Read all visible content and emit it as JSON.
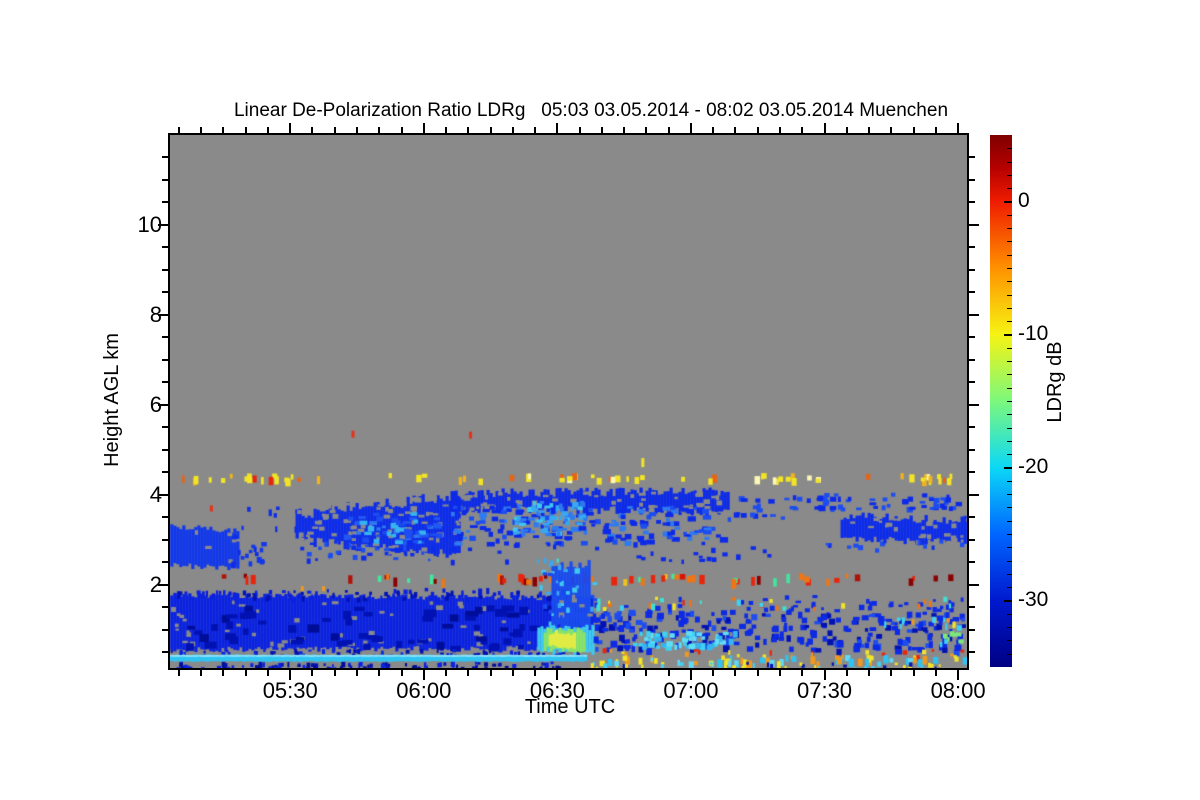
{
  "title": "Linear De-Polarization Ratio LDRg   05:03 03.05.2014 - 08:02 03.05.2014 Muenchen",
  "colors": {
    "background": "#ffffff",
    "no_data": "#8a8a8a",
    "axis": "#000000"
  },
  "axes": {
    "x": {
      "label": "Time UTC",
      "start_utc": "05:03",
      "end_utc": "08:02",
      "major": [
        {
          "t": 5.5,
          "label": "05:30"
        },
        {
          "t": 6.0,
          "label": "06:00"
        },
        {
          "t": 6.5,
          "label": "06:30"
        },
        {
          "t": 7.0,
          "label": "07:00"
        },
        {
          "t": 7.5,
          "label": "07:30"
        },
        {
          "t": 8.0,
          "label": "08:00"
        }
      ],
      "minor_step_minutes": 5
    },
    "y": {
      "label": "Height AGL km",
      "major": [
        {
          "h": 2,
          "label": "2"
        },
        {
          "h": 4,
          "label": "4"
        },
        {
          "h": 6,
          "label": "6"
        },
        {
          "h": 8,
          "label": "8"
        },
        {
          "h": 10,
          "label": "10"
        }
      ],
      "minor_step_km": 0.5
    }
  },
  "colorbar": {
    "label": "LDRg dB",
    "v_min": -35,
    "v_max": 5,
    "major": [
      {
        "v": 0,
        "label": "0"
      },
      {
        "v": -10,
        "label": "-10"
      },
      {
        "v": -20,
        "label": "-20"
      },
      {
        "v": -30,
        "label": "-30"
      }
    ],
    "minor_step_db": 1,
    "stops": [
      [
        "#7f0000",
        0
      ],
      [
        "#b40000",
        6
      ],
      [
        "#ef1c00",
        12.5
      ],
      [
        "#ff9100",
        25
      ],
      [
        "#f6f313",
        37.5
      ],
      [
        "#7cf87c",
        50
      ],
      [
        "#0cd8f6",
        62.5
      ],
      [
        "#0066ff",
        75
      ],
      [
        "#0019cf",
        87.5
      ],
      [
        "#000083",
        100
      ]
    ]
  },
  "chart_data": {
    "type": "heatmap",
    "title": "Linear De-Polarization Ratio LDRg   05:03 03.05.2014 - 08:02 03.05.2014 Muenchen",
    "site": "Muenchen",
    "date": "03.05.2014",
    "xlabel": "Time UTC",
    "ylabel": "Height AGL km",
    "x_range_utc": [
      "05:03",
      "08:02"
    ],
    "x_range_hours": [
      5.05,
      8.0333
    ],
    "y_range_km": [
      0.155,
      12
    ],
    "value_label": "LDRg dB",
    "value_range_db": [
      -35,
      5
    ],
    "colormap": "jet",
    "no_data_color": "#8a8a8a",
    "features": [
      {
        "name": "high-altitude-specks",
        "kind": "dots",
        "pts": [
          {
            "t": 5.735,
            "h": 5.35,
            "c": "#e63119",
            "w": 3,
            "ht": 7
          },
          {
            "t": 6.175,
            "h": 5.33,
            "c": "#e63119",
            "w": 3,
            "ht": 7
          },
          {
            "t": 6.82,
            "h": 4.72,
            "c": "#f2e426",
            "w": 3,
            "ht": 9
          },
          {
            "t": 5.205,
            "h": 3.7,
            "c": "#e63119",
            "w": 3,
            "ht": 6
          }
        ]
      },
      {
        "name": "aerosol-layer-4p4km",
        "kind": "speckle",
        "t": [
          5.07,
          8.02
        ],
        "h": [
          4.36,
          4.49
        ],
        "density": 0.3,
        "cell": [
          4,
          6
        ],
        "colors": [
          "#f2e426",
          "#f2e426",
          "#f2e426",
          "#efb41e",
          "#e66414",
          "#fbf7b4"
        ]
      },
      {
        "name": "aerosol-4p4km-dense-left",
        "kind": "speckle",
        "t": [
          5.12,
          5.45
        ],
        "h": [
          4.36,
          4.49
        ],
        "density": 0.35,
        "cell": [
          4,
          6
        ],
        "colors": [
          "#f2e426",
          "#efb41e",
          "#e8250c"
        ]
      },
      {
        "name": "aerosol-4p4km-dense-right",
        "kind": "speckle",
        "t": [
          7.82,
          8.03
        ],
        "h": [
          4.36,
          4.49
        ],
        "density": 0.5,
        "cell": [
          4,
          6
        ],
        "colors": [
          "#f2e426",
          "#efb41e"
        ]
      },
      {
        "name": "cloud-left-patch",
        "kind": "fill",
        "t": [
          5.051,
          5.3
        ],
        "hTop": [
          3.28,
          3.22
        ],
        "hBot": [
          2.42,
          2.38
        ],
        "color": "#1238ea",
        "jitter": 0.07,
        "holes": 0.04
      },
      {
        "name": "cloud-left-fringe",
        "kind": "speckle",
        "t": [
          5.27,
          5.42
        ],
        "h": [
          2.5,
          3.15
        ],
        "density": 0.25,
        "cell": [
          4,
          5
        ],
        "colors": [
          "#1238ea",
          "#0d2cea"
        ]
      },
      {
        "name": "cloud-left-above-specks",
        "kind": "speckle",
        "t": [
          5.28,
          5.55
        ],
        "h": [
          3.3,
          3.8
        ],
        "density": 0.07,
        "cell": [
          3,
          5
        ],
        "colors": [
          "#0d2cea"
        ]
      },
      {
        "name": "cloud-bandA-core",
        "kind": "fill",
        "t": [
          5.52,
          6.135
        ],
        "hTop": [
          3.58,
          3.98
        ],
        "hBot": [
          3.0,
          2.62
        ],
        "color": "#0d2cea",
        "jitter": 0.14,
        "holes": 0.2
      },
      {
        "name": "cloud-bandA-bright",
        "kind": "speckle",
        "t": [
          5.7,
          6.08
        ],
        "h": [
          2.95,
          3.62
        ],
        "density": 0.45,
        "cell": [
          6,
          4
        ],
        "colors": [
          "#2257f2",
          "#2e7af0",
          "#35b5ef",
          "#1d4df0"
        ]
      },
      {
        "name": "cloud-bandA-fringe",
        "kind": "speckle",
        "t": [
          5.5,
          6.12
        ],
        "h": [
          2.58,
          3.0
        ],
        "density": 0.17,
        "cell": [
          4,
          4
        ],
        "colors": [
          "#0d2cea",
          "#1d4df0"
        ]
      },
      {
        "name": "cloud-deck-top",
        "kind": "fill",
        "t": [
          6.1,
          7.135
        ],
        "hTop": [
          4.04,
          4.08
        ],
        "hBot": [
          3.7,
          3.62
        ],
        "color": "#0c2ae8",
        "jitter": 0.1,
        "holes": 0.22
      },
      {
        "name": "cloud-deck-mid",
        "kind": "speckle",
        "t": [
          6.1,
          7.135
        ],
        "h": [
          2.95,
          3.78
        ],
        "density": 0.4,
        "cell": [
          6,
          4
        ],
        "colors": [
          "#0c2ae8",
          "#0c2ae8",
          "#1d4df0",
          "#2e7af0"
        ]
      },
      {
        "name": "cloud-deck-light-core",
        "kind": "speckle",
        "t": [
          6.33,
          6.63
        ],
        "h": [
          3.15,
          3.88
        ],
        "density": 0.5,
        "cell": [
          5,
          4
        ],
        "colors": [
          "#2e7af0",
          "#38a8f0",
          "#40c8ee"
        ]
      },
      {
        "name": "cloud-deck-low-fringe",
        "kind": "speckle",
        "t": [
          6.1,
          7.4
        ],
        "h": [
          2.55,
          2.95
        ],
        "density": 0.07,
        "cell": [
          4,
          4
        ],
        "colors": [
          "#0c2ae8"
        ]
      },
      {
        "name": "cloud-gap-specks",
        "kind": "speckle",
        "t": [
          7.135,
          7.46
        ],
        "h": [
          3.5,
          4.05
        ],
        "density": 0.2,
        "cell": [
          5,
          4
        ],
        "colors": [
          "#0c2ae8",
          "#1d4df0"
        ]
      },
      {
        "name": "cloud-bandB-top",
        "kind": "speckle",
        "t": [
          7.46,
          8.03
        ],
        "h": [
          3.72,
          4.06
        ],
        "density": 0.45,
        "cell": [
          5,
          4
        ],
        "colors": [
          "#0c2ae8",
          "#1d4df0"
        ]
      },
      {
        "name": "cloud-bandB-mass",
        "kind": "fill",
        "t": [
          7.56,
          8.032
        ],
        "hTop": [
          3.52,
          3.45
        ],
        "hBot": [
          3.02,
          2.95
        ],
        "color": "#0d2cea",
        "jitter": 0.1,
        "holes": 0.15
      },
      {
        "name": "cloud-bandB-fringe",
        "kind": "speckle",
        "t": [
          7.5,
          8.03
        ],
        "h": [
          2.78,
          3.02
        ],
        "density": 0.13,
        "cell": [
          4,
          4
        ],
        "colors": [
          "#0d2cea",
          "#1d4df0"
        ]
      },
      {
        "name": "melting-layer-dots-2p2km",
        "kind": "speckle",
        "t": [
          5.05,
          8.03
        ],
        "h": [
          2.12,
          2.26
        ],
        "density": 0.28,
        "cell": [
          4,
          7
        ],
        "colors": [
          "#e8250c",
          "#e8250c",
          "#ef7615",
          "#b01208",
          "#8b0000",
          "#f2c31e",
          "#40e8a0"
        ]
      },
      {
        "name": "melting-layer-dense-mid",
        "kind": "speckle",
        "t": [
          6.55,
          7.06
        ],
        "h": [
          2.13,
          2.26
        ],
        "density": 0.45,
        "cell": [
          5,
          7
        ],
        "colors": [
          "#e8250c",
          "#d81505",
          "#ef7615"
        ]
      },
      {
        "name": "speck-line-1p9km",
        "kind": "speckle",
        "t": [
          5.05,
          6.58
        ],
        "h": [
          1.8,
          1.94
        ],
        "density": 0.2,
        "cell": [
          3,
          5
        ],
        "colors": [
          "#0a1cd8"
        ]
      },
      {
        "name": "speck-line-orange-dots",
        "kind": "dots",
        "pts": [
          {
            "t": 5.545,
            "h": 1.92,
            "c": "#ef9a1e",
            "w": 3,
            "ht": 5
          },
          {
            "t": 5.625,
            "h": 1.92,
            "c": "#ef9a1e",
            "w": 3,
            "ht": 5
          }
        ]
      },
      {
        "name": "boundary-layer-main",
        "kind": "fill",
        "t": [
          5.051,
          6.625
        ],
        "hTop": [
          1.78,
          1.7
        ],
        "hBot": [
          0.56,
          0.6
        ],
        "color": "#0a22e2",
        "jitter": 0.06,
        "holes": 0.05
      },
      {
        "name": "boundary-layer-dark-patches",
        "kind": "speckle",
        "t": [
          5.1,
          6.6
        ],
        "h": [
          0.62,
          1.55
        ],
        "density": 0.22,
        "cell": [
          9,
          6
        ],
        "colors": [
          "#0212b2",
          "#0212b2",
          "#000d96"
        ]
      },
      {
        "name": "boundary-layer-top-fringe",
        "kind": "speckle",
        "t": [
          5.05,
          6.6
        ],
        "h": [
          1.7,
          1.9
        ],
        "density": 0.28,
        "cell": [
          3,
          4
        ],
        "colors": [
          "#0a22e2",
          "#0212b2"
        ]
      },
      {
        "name": "boundary-layer-bottom-fringe",
        "kind": "speckle",
        "t": [
          5.05,
          6.6
        ],
        "h": [
          0.44,
          0.58
        ],
        "density": 0.3,
        "cell": [
          3,
          4
        ],
        "colors": [
          "#0a22e2",
          "#0212b2"
        ]
      },
      {
        "name": "plume-0630-column",
        "kind": "fill",
        "t": [
          6.478,
          6.618
        ],
        "hTop": [
          2.42,
          2.52
        ],
        "hBot": [
          1.02,
          1.02
        ],
        "color": "#1a4cee",
        "jitter": 0.12,
        "holes": 0.05
      },
      {
        "name": "plume-0630-fringe",
        "kind": "speckle",
        "t": [
          6.43,
          6.65
        ],
        "h": [
          1.0,
          2.55
        ],
        "density": 0.15,
        "cell": [
          4,
          4
        ],
        "colors": [
          "#38a8f0",
          "#40c8ee",
          "#1a4cee",
          "#1a4cee"
        ]
      },
      {
        "name": "plume-0630-top-specks",
        "kind": "speckle",
        "t": [
          6.41,
          6.52
        ],
        "h": [
          2.42,
          2.62
        ],
        "density": 0.25,
        "cell": [
          3,
          4
        ],
        "colors": [
          "#40e0d0",
          "#7ce87c",
          "#38a8f0"
        ]
      },
      {
        "name": "plume-base-outer",
        "kind": "fill",
        "t": [
          6.425,
          6.638
        ],
        "hTop": [
          1.06,
          1.06
        ],
        "hBot": [
          0.5,
          0.5
        ],
        "color": "#3ec9f0",
        "jitter": 0.06,
        "holes": 0
      },
      {
        "name": "plume-base-mid",
        "kind": "fill",
        "t": [
          6.448,
          6.605
        ],
        "hTop": [
          1.0,
          1.0
        ],
        "hBot": [
          0.56,
          0.56
        ],
        "color": "#8ce463",
        "jitter": 0.07,
        "holes": 0
      },
      {
        "name": "plume-base-core",
        "kind": "fill",
        "t": [
          6.468,
          6.568
        ],
        "hTop": [
          0.94,
          0.94
        ],
        "hBot": [
          0.62,
          0.62
        ],
        "color": "#e0ec45",
        "jitter": 0.06,
        "holes": 0
      },
      {
        "name": "lower-right-layer",
        "kind": "speckle",
        "t": [
          6.63,
          8.033
        ],
        "h": [
          0.56,
          1.45
        ],
        "density": 0.45,
        "cell": [
          5,
          5
        ],
        "colors": [
          "#0d2ae4",
          "#0d2ae4",
          "#0d2ae4",
          "#0212b2",
          "#1d4df0"
        ]
      },
      {
        "name": "lower-right-cyan-core",
        "kind": "speckle",
        "t": [
          6.78,
          7.18
        ],
        "h": [
          0.62,
          0.98
        ],
        "density": 0.7,
        "cell": [
          5,
          5
        ],
        "colors": [
          "#3fd2f2",
          "#35b5ef",
          "#60def6"
        ]
      },
      {
        "name": "lower-right-upper-specks",
        "kind": "speckle",
        "t": [
          6.63,
          8.03
        ],
        "h": [
          1.45,
          1.78
        ],
        "density": 0.13,
        "cell": [
          4,
          4
        ],
        "colors": [
          "#0d2ae4"
        ]
      },
      {
        "name": "mixed-speck-line-upper",
        "kind": "speckle",
        "t": [
          6.6,
          8.03
        ],
        "h": [
          1.5,
          1.74
        ],
        "density": 0.1,
        "cell": [
          3,
          5
        ],
        "colors": [
          "#40e0d0",
          "#f2e426",
          "#ef7615",
          "#e8250c",
          "#3fd2f2"
        ]
      },
      {
        "name": "mixed-speck-line-right",
        "kind": "speckle",
        "t": [
          7.7,
          8.03
        ],
        "h": [
          1.12,
          1.34
        ],
        "density": 0.25,
        "cell": [
          3,
          5
        ],
        "colors": [
          "#3fd2f2",
          "#f2e426",
          "#ef9a1e",
          "#0d2ae4",
          "#0d2ae4"
        ]
      },
      {
        "name": "low-colored-specks",
        "kind": "speckle",
        "t": [
          6.63,
          8.03
        ],
        "h": [
          0.42,
          0.6
        ],
        "density": 0.1,
        "cell": [
          3,
          4
        ],
        "colors": [
          "#ef9a1e",
          "#f2e426",
          "#e8250c"
        ]
      },
      {
        "name": "right-edge-cyan-flecks",
        "kind": "speckle",
        "t": [
          7.93,
          8.033
        ],
        "h": [
          0.6,
          1.15
        ],
        "density": 0.25,
        "cell": [
          4,
          4
        ],
        "colors": [
          "#3fd2f2",
          "#7ce87c"
        ]
      },
      {
        "name": "surface-cyan-stripe-left",
        "kind": "fill",
        "t": [
          5.05,
          6.6
        ],
        "hTop": [
          0.445,
          0.445
        ],
        "hBot": [
          0.3,
          0.3
        ],
        "color": "#2fc3f2",
        "jitter": 0.01,
        "holes": 0
      },
      {
        "name": "surface-cyan-stripe-highlight",
        "kind": "fill",
        "t": [
          5.05,
          6.6
        ],
        "hTop": [
          0.445,
          0.445
        ],
        "hBot": [
          0.405,
          0.405
        ],
        "color": "#8fe3fa",
        "jitter": 0.005,
        "holes": 0
      },
      {
        "name": "surface-cyan-stripe-right",
        "kind": "speckle",
        "t": [
          6.6,
          8.033
        ],
        "h": [
          0.3,
          0.445
        ],
        "density": 0.55,
        "cell": [
          4,
          6
        ],
        "colors": [
          "#2fc3f2",
          "#2fc3f2",
          "#60d8f8",
          "#f2e426",
          "#ef9a1e"
        ]
      },
      {
        "name": "sub-stripe-left",
        "kind": "speckle",
        "t": [
          5.05,
          6.6
        ],
        "h": [
          0.17,
          0.3
        ],
        "density": 0.5,
        "cell": [
          3,
          4
        ],
        "colors": [
          "#0212b2",
          "#0a22e2",
          "#000d96"
        ]
      },
      {
        "name": "sub-stripe-right",
        "kind": "speckle",
        "t": [
          6.6,
          8.033
        ],
        "h": [
          0.17,
          0.3
        ],
        "density": 0.22,
        "cell": [
          3,
          4
        ],
        "colors": [
          "#0212b2",
          "#3fd2f2",
          "#f2e426"
        ]
      }
    ]
  }
}
